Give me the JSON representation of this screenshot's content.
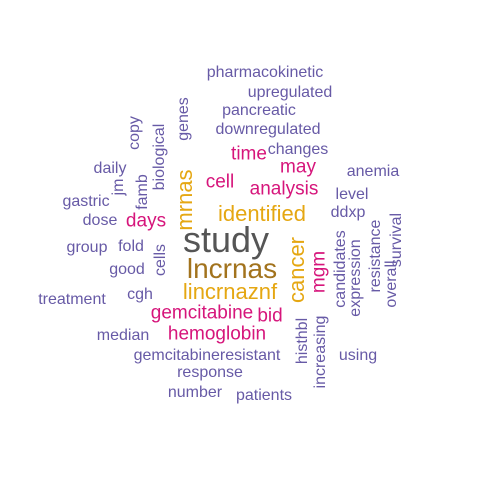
{
  "colors": {
    "purple": "#675aa6",
    "magenta": "#d6157b",
    "gold": "#e5a712",
    "brown": "#a2731d",
    "gray": "#555555"
  },
  "words": [
    {
      "text": "pharmacokinetic",
      "color": "purple",
      "rank": 5,
      "vertical": false
    },
    {
      "text": "upregulated",
      "color": "purple",
      "rank": 5,
      "vertical": false
    },
    {
      "text": "pancreatic",
      "color": "purple",
      "rank": 5,
      "vertical": false
    },
    {
      "text": "downregulated",
      "color": "purple",
      "rank": 5,
      "vertical": false
    },
    {
      "text": "genes",
      "color": "purple",
      "rank": 5,
      "vertical": true
    },
    {
      "text": "copy",
      "color": "purple",
      "rank": 5,
      "vertical": true
    },
    {
      "text": "biological",
      "color": "purple",
      "rank": 5,
      "vertical": true
    },
    {
      "text": "famb",
      "color": "purple",
      "rank": 5,
      "vertical": true
    },
    {
      "text": "jm",
      "color": "purple",
      "rank": 5,
      "vertical": true
    },
    {
      "text": "changes",
      "color": "purple",
      "rank": 5,
      "vertical": false
    },
    {
      "text": "daily",
      "color": "purple",
      "rank": 5,
      "vertical": false
    },
    {
      "text": "time",
      "color": "magenta",
      "rank": 3,
      "vertical": false
    },
    {
      "text": "may",
      "color": "magenta",
      "rank": 3,
      "vertical": false
    },
    {
      "text": "anemia",
      "color": "purple",
      "rank": 5,
      "vertical": false
    },
    {
      "text": "cell",
      "color": "magenta",
      "rank": 3,
      "vertical": false
    },
    {
      "text": "analysis",
      "color": "magenta",
      "rank": 3,
      "vertical": false
    },
    {
      "text": "level",
      "color": "purple",
      "rank": 5,
      "vertical": false
    },
    {
      "text": "gastric",
      "color": "purple",
      "rank": 5,
      "vertical": false
    },
    {
      "text": "mrnas",
      "color": "gold",
      "rank": 2,
      "vertical": true
    },
    {
      "text": "identified",
      "color": "gold",
      "rank": 2,
      "vertical": false
    },
    {
      "text": "ddxp",
      "color": "purple",
      "rank": 5,
      "vertical": false
    },
    {
      "text": "dose",
      "color": "purple",
      "rank": 5,
      "vertical": false
    },
    {
      "text": "days",
      "color": "magenta",
      "rank": 3,
      "vertical": false
    },
    {
      "text": "study",
      "color": "gray",
      "rank": 0,
      "vertical": false
    },
    {
      "text": "group",
      "color": "purple",
      "rank": 5,
      "vertical": false
    },
    {
      "text": "fold",
      "color": "purple",
      "rank": 5,
      "vertical": false
    },
    {
      "text": "cancer",
      "color": "gold",
      "rank": 2,
      "vertical": true
    },
    {
      "text": "candidates",
      "color": "purple",
      "rank": 5,
      "vertical": true
    },
    {
      "text": "resistance",
      "color": "purple",
      "rank": 5,
      "vertical": true
    },
    {
      "text": "survival",
      "color": "purple",
      "rank": 5,
      "vertical": true
    },
    {
      "text": "good",
      "color": "purple",
      "rank": 5,
      "vertical": false
    },
    {
      "text": "cells",
      "color": "purple",
      "rank": 5,
      "vertical": true
    },
    {
      "text": "lncrnas",
      "color": "brown",
      "rank": 1,
      "vertical": false
    },
    {
      "text": "mgm",
      "color": "magenta",
      "rank": 3,
      "vertical": true
    },
    {
      "text": "expression",
      "color": "purple",
      "rank": 5,
      "vertical": true
    },
    {
      "text": "overall",
      "color": "purple",
      "rank": 5,
      "vertical": true
    },
    {
      "text": "cgh",
      "color": "purple",
      "rank": 5,
      "vertical": false
    },
    {
      "text": "lincrnaznf",
      "color": "gold",
      "rank": 2,
      "vertical": false
    },
    {
      "text": "treatment",
      "color": "purple",
      "rank": 5,
      "vertical": false
    },
    {
      "text": "gemcitabine",
      "color": "magenta",
      "rank": 3,
      "vertical": false
    },
    {
      "text": "bid",
      "color": "magenta",
      "rank": 3,
      "vertical": false
    },
    {
      "text": "median",
      "color": "purple",
      "rank": 5,
      "vertical": false
    },
    {
      "text": "hemoglobin",
      "color": "magenta",
      "rank": 3,
      "vertical": false
    },
    {
      "text": "histhbl",
      "color": "purple",
      "rank": 5,
      "vertical": true
    },
    {
      "text": "increasing",
      "color": "purple",
      "rank": 5,
      "vertical": true
    },
    {
      "text": "gemcitabineresistant",
      "color": "purple",
      "rank": 5,
      "vertical": false
    },
    {
      "text": "using",
      "color": "purple",
      "rank": 5,
      "vertical": false
    },
    {
      "text": "response",
      "color": "purple",
      "rank": 5,
      "vertical": false
    },
    {
      "text": "number",
      "color": "purple",
      "rank": 5,
      "vertical": false
    },
    {
      "text": "patients",
      "color": "purple",
      "rank": 5,
      "vertical": false
    }
  ]
}
